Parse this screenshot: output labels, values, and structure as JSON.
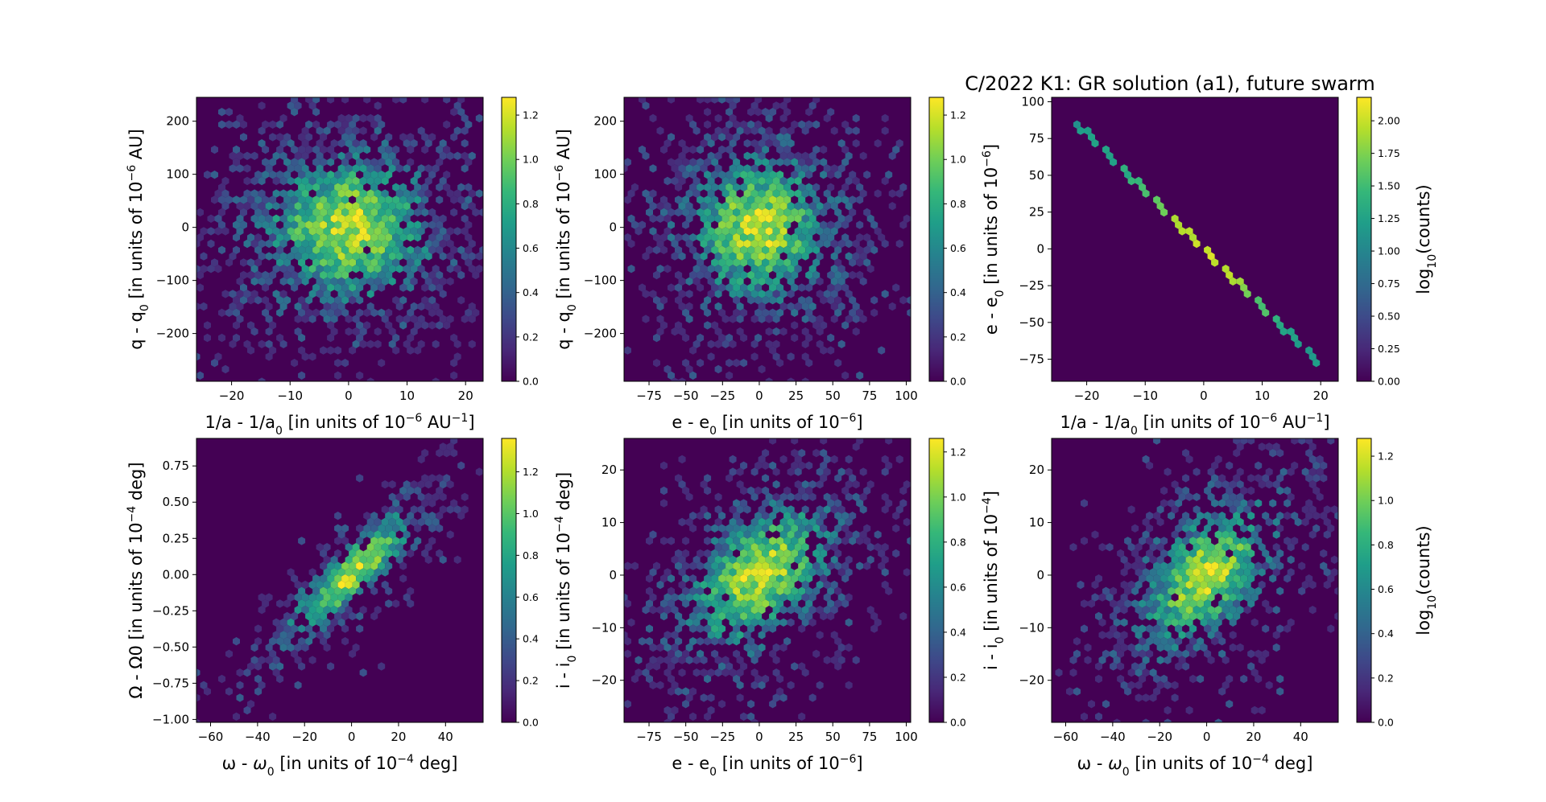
{
  "figure_title": "C/2022 K1: GR solution (a1), future swarm",
  "colors": {
    "background": "#440154",
    "colormap": [
      "#440154",
      "#482878",
      "#3e4989",
      "#31688e",
      "#26828e",
      "#1f9e89",
      "#35b779",
      "#6ece58",
      "#b5de2b",
      "#fde725"
    ],
    "axes_frame": "#000000"
  },
  "chart_data": [
    {
      "type": "heatmap",
      "subtype": "hexbin",
      "xlabel": "1/a - 1/a0 [in units of 10-6 AU-1]",
      "ylabel": "q - q0 [in units of 10-6 AU]",
      "xlim": [
        -26,
        23
      ],
      "ylim": [
        -290,
        245
      ],
      "xticks": [
        "−20",
        "−10",
        "0",
        "10",
        "20"
      ],
      "xtick_values": [
        -20,
        -10,
        0,
        10,
        20
      ],
      "yticks": [
        "−200",
        "−100",
        "0",
        "100",
        "200"
      ],
      "ytick_values": [
        -200,
        -100,
        0,
        100,
        200
      ],
      "colorbar": {
        "label": "",
        "range": [
          0,
          1.28
        ],
        "ticks": [
          "0.0",
          "0.2",
          "0.4",
          "0.6",
          "0.8",
          "1.0",
          "1.2"
        ],
        "tick_values": [
          0,
          0.2,
          0.4,
          0.6,
          0.8,
          1.0,
          1.2
        ]
      },
      "distribution": {
        "mean": [
          0,
          0
        ],
        "sd": [
          9,
          85
        ],
        "corr": 0.0,
        "vmax": 1.28
      }
    },
    {
      "type": "heatmap",
      "subtype": "hexbin",
      "xlabel": "e - e0 [in units of 10-6]",
      "ylabel": "q - q0 [in units of 10-6 AU]",
      "xlim": [
        -92,
        103
      ],
      "ylim": [
        -290,
        245
      ],
      "xticks": [
        "−75",
        "−50",
        "−25",
        "0",
        "25",
        "50",
        "75",
        "100"
      ],
      "xtick_values": [
        -75,
        -50,
        -25,
        0,
        25,
        50,
        75,
        100
      ],
      "yticks": [
        "−200",
        "−100",
        "0",
        "100",
        "200"
      ],
      "ytick_values": [
        -200,
        -100,
        0,
        100,
        200
      ],
      "colorbar": {
        "label": "",
        "range": [
          0,
          1.28
        ],
        "ticks": [
          "0.0",
          "0.2",
          "0.4",
          "0.6",
          "0.8",
          "1.0",
          "1.2"
        ],
        "tick_values": [
          0,
          0.2,
          0.4,
          0.6,
          0.8,
          1.0,
          1.2
        ]
      },
      "distribution": {
        "mean": [
          0,
          0
        ],
        "sd": [
          30,
          85
        ],
        "corr": 0.0,
        "vmax": 1.28
      }
    },
    {
      "type": "heatmap",
      "subtype": "hexbin",
      "xlabel": "1/a - 1/a0 [in units of 10-6 AU-1]",
      "ylabel": "e - e0 [in units of 10-6]",
      "xlim": [
        -26,
        23
      ],
      "ylim": [
        -90,
        103
      ],
      "xticks": [
        "−20",
        "−10",
        "0",
        "10",
        "20"
      ],
      "xtick_values": [
        -20,
        -10,
        0,
        10,
        20
      ],
      "yticks": [
        "−75",
        "−50",
        "−25",
        "0",
        "25",
        "50",
        "75",
        "100"
      ],
      "ytick_values": [
        -75,
        -50,
        -25,
        0,
        25,
        50,
        75,
        100
      ],
      "colorbar": {
        "label": "log10(counts)",
        "range": [
          0,
          2.18
        ],
        "ticks": [
          "0.00",
          "0.25",
          "0.50",
          "0.75",
          "1.00",
          "1.25",
          "1.50",
          "1.75",
          "2.00"
        ],
        "tick_values": [
          0,
          0.25,
          0.5,
          0.75,
          1.0,
          1.25,
          1.5,
          1.75,
          2.0
        ]
      },
      "distribution": {
        "line": {
          "x_range": [
            -21.5,
            20.5
          ],
          "slope": -3.93,
          "intercept": 0,
          "sd_x": 8
        },
        "vmax": 2.18
      }
    },
    {
      "type": "heatmap",
      "subtype": "hexbin",
      "xlabel": "ω - ω0 [in units of 10-4 deg]",
      "ylabel": "Ω - Ω0 [in units of 10-4 deg]",
      "xlim": [
        -66,
        56
      ],
      "ylim": [
        -1.02,
        0.94
      ],
      "xticks": [
        "−60",
        "−40",
        "−20",
        "0",
        "20",
        "40"
      ],
      "xtick_values": [
        -60,
        -40,
        -20,
        0,
        20,
        40
      ],
      "yticks": [
        "−1.00",
        "−0.75",
        "−0.50",
        "−0.25",
        "0.00",
        "0.25",
        "0.50",
        "0.75"
      ],
      "ytick_values": [
        -1.0,
        -0.75,
        -0.5,
        -0.25,
        0,
        0.25,
        0.5,
        0.75
      ],
      "colorbar": {
        "label": "",
        "range": [
          0,
          1.36
        ],
        "ticks": [
          "0.0",
          "0.2",
          "0.4",
          "0.6",
          "0.8",
          "1.0",
          "1.2"
        ],
        "tick_values": [
          0,
          0.2,
          0.4,
          0.6,
          0.8,
          1.0,
          1.2
        ]
      },
      "distribution": {
        "mean": [
          0,
          0
        ],
        "sd": [
          17,
          0.28
        ],
        "corr": 0.88,
        "vmax": 1.36
      }
    },
    {
      "type": "heatmap",
      "subtype": "hexbin",
      "xlabel": "e - e0 [in units of 10-6]",
      "ylabel": "i - i0 [in units of 10-4 deg]",
      "xlim": [
        -92,
        103
      ],
      "ylim": [
        -28,
        26
      ],
      "xticks": [
        "−75",
        "−50",
        "−25",
        "0",
        "25",
        "50",
        "75",
        "100"
      ],
      "xtick_values": [
        -75,
        -50,
        -25,
        0,
        25,
        50,
        75,
        100
      ],
      "yticks": [
        "−20",
        "−10",
        "0",
        "10",
        "20"
      ],
      "ytick_values": [
        -20,
        -10,
        0,
        10,
        20
      ],
      "colorbar": {
        "label": "",
        "range": [
          0,
          1.26
        ],
        "ticks": [
          "0.0",
          "0.2",
          "0.4",
          "0.6",
          "0.8",
          "1.0",
          "1.2"
        ],
        "tick_values": [
          0,
          0.2,
          0.4,
          0.6,
          0.8,
          1.0,
          1.2
        ]
      },
      "distribution": {
        "mean": [
          0,
          0
        ],
        "sd": [
          30,
          8.5
        ],
        "corr": 0.45,
        "vmax": 1.26
      }
    },
    {
      "type": "heatmap",
      "subtype": "hexbin",
      "xlabel": "ω - ω0 [in units of 10-4 deg]",
      "ylabel": "i - i0 [in units of 10-4]",
      "xlim": [
        -66,
        56
      ],
      "ylim": [
        -28,
        26
      ],
      "xticks": [
        "−60",
        "−40",
        "−20",
        "0",
        "20",
        "40"
      ],
      "xtick_values": [
        -60,
        -40,
        -20,
        0,
        20,
        40
      ],
      "yticks": [
        "−20",
        "−10",
        "0",
        "10",
        "20"
      ],
      "ytick_values": [
        -20,
        -10,
        0,
        10,
        20
      ],
      "colorbar": {
        "label": "log10(counts)",
        "range": [
          0,
          1.28
        ],
        "ticks": [
          "0.0",
          "0.2",
          "0.4",
          "0.6",
          "0.8",
          "1.0",
          "1.2"
        ],
        "tick_values": [
          0,
          0.2,
          0.4,
          0.6,
          0.8,
          1.0,
          1.2
        ]
      },
      "distribution": {
        "mean": [
          0,
          0
        ],
        "sd": [
          17,
          8.5
        ],
        "corr": 0.5,
        "vmax": 1.28
      }
    }
  ]
}
